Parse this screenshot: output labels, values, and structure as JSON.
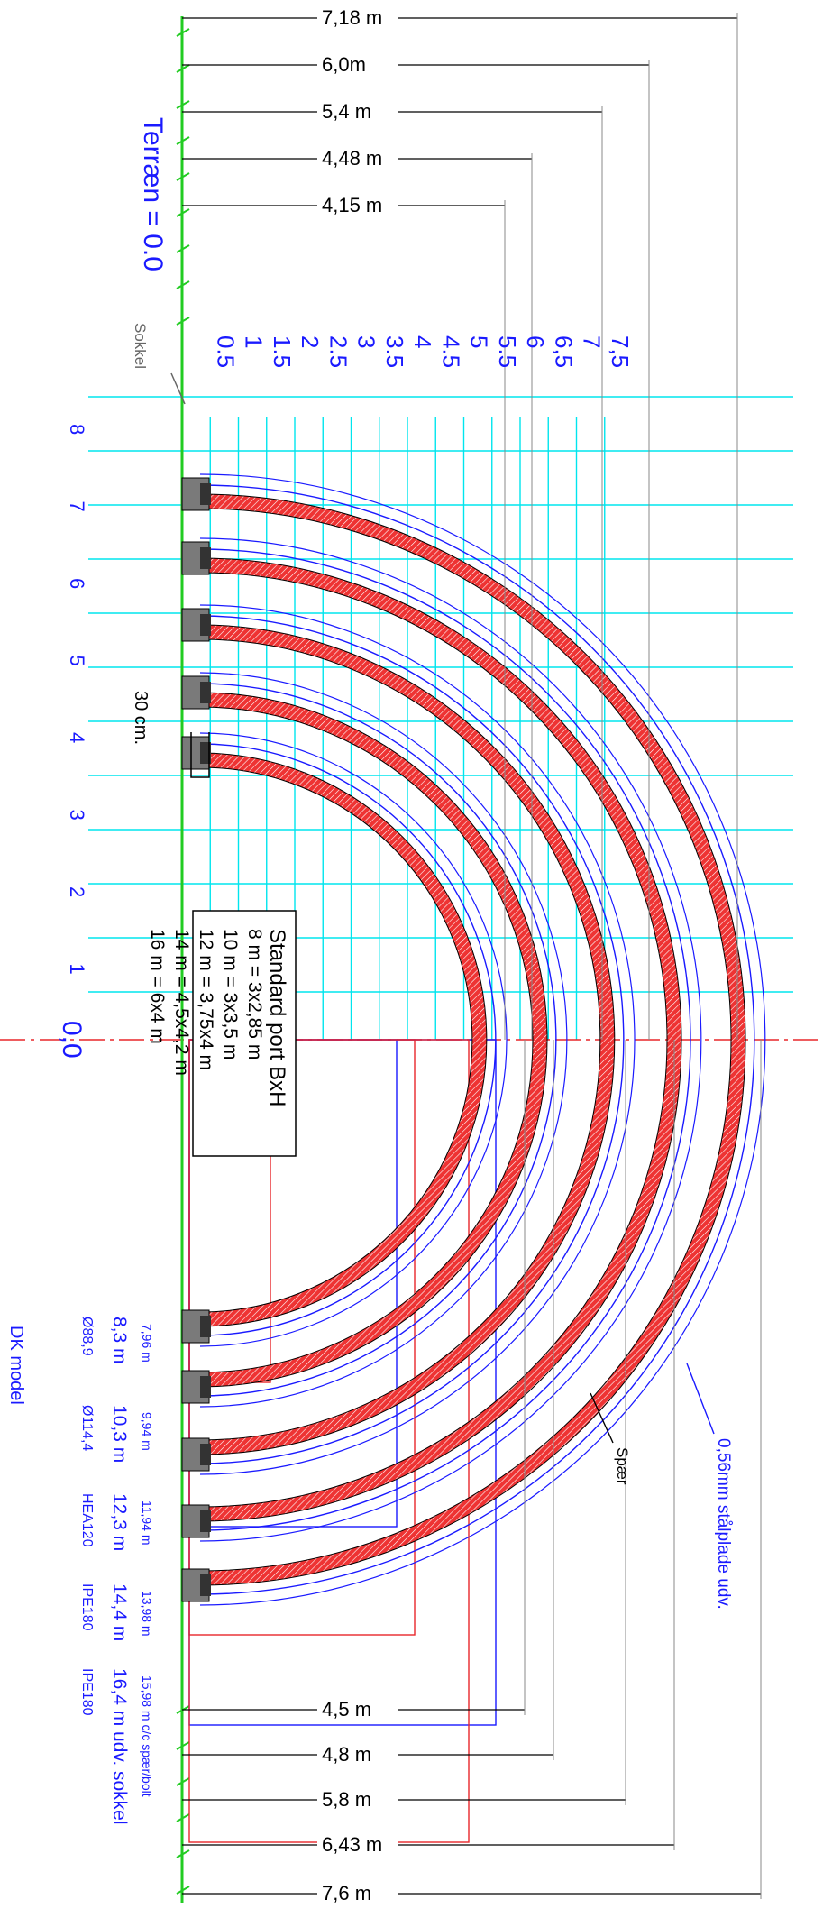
{
  "terrain_label": "Terræn = 0.0",
  "sokkel_label": "Sokkel",
  "origin_label": "0,0",
  "spaer_label": "Spær",
  "steel_label": "0,56mm stålplade udv.",
  "gap_label": "30 cm.",
  "model_label": "DK model",
  "top_dimensions": [
    "7,18 m",
    "6,0m",
    "5,4 m",
    "4,48 m",
    "4,15 m"
  ],
  "bottom_dimensions": [
    "4,5 m",
    "4,8 m",
    "5,8 m",
    "6,43 m",
    "7,6 m"
  ],
  "height_scale": [
    "0.5",
    "1",
    "1.5",
    "2",
    "2.5",
    "3",
    "3.5",
    "4",
    "4.5",
    "5",
    "5.5",
    "6",
    "6,5",
    "7",
    "7,5"
  ],
  "width_scale": [
    "8",
    "7",
    "6",
    "5",
    "4",
    "3",
    "2",
    "1"
  ],
  "port_box": {
    "title": "Standard port BxH",
    "lines": [
      "8 m = 3x2,85 m",
      "10 m = 3x3,5 m",
      "12 m = 3,75x4 m",
      "14 m = 4,5x4,2 m",
      "16 m = 6x4 m"
    ]
  },
  "legend_spacing": [
    "7,96 m",
    "9,94 m",
    "11,94 m",
    "13,98 m",
    "15,98 m c/c spær/bolt"
  ],
  "legend_width": [
    "8,3 m",
    "10,3 m",
    "12,3 m",
    "14,4 m",
    "16,4 m udv. sokkel"
  ],
  "legend_profile": [
    "Ø88,9",
    "Ø114,4",
    "HEA120",
    "IPE180",
    "IPE180"
  ],
  "colors": {
    "rafter": "#e8262a",
    "cladding": "#1a1aff",
    "grid": "#00e5ee",
    "terrain": "#22cc22",
    "footing": "#7a7a7a",
    "axis": "#e8262a"
  }
}
